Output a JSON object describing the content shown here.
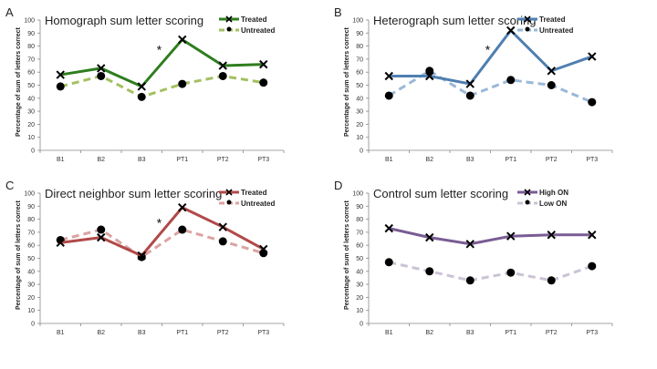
{
  "chart_data": [
    {
      "type": "line",
      "panel_label": "A",
      "title": "Homograph sum letter scoring",
      "xlabel": "",
      "ylabel": "Percentage of sum of letters correct",
      "ylim": [
        0,
        100
      ],
      "yticks": [
        "0",
        "10",
        "20",
        "30",
        "40",
        "50",
        "60",
        "70",
        "80",
        "90",
        "100"
      ],
      "categories": [
        "B1",
        "B2",
        "B3",
        "PT1",
        "PT2",
        "PT3"
      ],
      "legend_position": "top-right",
      "annotation": {
        "text": "*",
        "between": [
          "B3",
          "PT1"
        ],
        "y": 78
      },
      "series": [
        {
          "name": "Treated",
          "color": "#2e7d1e",
          "style": "solid",
          "marker": "x",
          "values": [
            58,
            63,
            49,
            85,
            65,
            66
          ]
        },
        {
          "name": "Untreated",
          "color": "#a4c060",
          "style": "dashed",
          "marker": "circle",
          "values": [
            49,
            57,
            41,
            51,
            57,
            52
          ]
        }
      ]
    },
    {
      "type": "line",
      "panel_label": "B",
      "title": "Heterograph sum letter scoring",
      "xlabel": "",
      "ylabel": "Percentage of sum of letters correct",
      "ylim": [
        0,
        100
      ],
      "yticks": [
        "0",
        "10",
        "20",
        "30",
        "40",
        "50",
        "60",
        "70",
        "80",
        "90",
        "100"
      ],
      "categories": [
        "B1",
        "B2",
        "B3",
        "PT1",
        "PT2",
        "PT3"
      ],
      "legend_position": "top-right",
      "annotation": {
        "text": "*",
        "between": [
          "B3",
          "PT1"
        ],
        "y": 78
      },
      "series": [
        {
          "name": "Treated",
          "color": "#4f7fb0",
          "style": "solid",
          "marker": "x",
          "values": [
            57,
            57,
            51,
            92,
            61,
            72
          ]
        },
        {
          "name": "Untreated",
          "color": "#9ab8d8",
          "style": "dashed",
          "marker": "circle",
          "values": [
            42,
            61,
            42,
            54,
            50,
            37
          ]
        }
      ]
    },
    {
      "type": "line",
      "panel_label": "C",
      "title": "Direct neighbor sum letter scoring",
      "xlabel": "",
      "ylabel": "Percentage of sum of letters correct",
      "ylim": [
        0,
        100
      ],
      "yticks": [
        "0",
        "10",
        "20",
        "30",
        "40",
        "50",
        "60",
        "70",
        "80",
        "90",
        "100"
      ],
      "categories": [
        "B1",
        "B2",
        "B3",
        "PT1",
        "PT2",
        "PT3"
      ],
      "legend_position": "top-right",
      "annotation": {
        "text": "*",
        "between": [
          "B3",
          "PT1"
        ],
        "y": 78
      },
      "series": [
        {
          "name": "Treated",
          "color": "#b04a48",
          "style": "solid",
          "marker": "x",
          "values": [
            62,
            66,
            52,
            89,
            74,
            57
          ]
        },
        {
          "name": "Untreated",
          "color": "#dba3a2",
          "style": "dashed",
          "marker": "circle",
          "values": [
            64,
            72,
            51,
            72,
            63,
            54
          ]
        }
      ]
    },
    {
      "type": "line",
      "panel_label": "D",
      "title": "Control sum letter scoring",
      "xlabel": "",
      "ylabel": "Percentage of sum of letters correct",
      "ylim": [
        0,
        100
      ],
      "yticks": [
        "0",
        "10",
        "20",
        "30",
        "40",
        "50",
        "60",
        "70",
        "80",
        "90",
        "100"
      ],
      "categories": [
        "B1",
        "B2",
        "B3",
        "PT1",
        "PT2",
        "PT3"
      ],
      "legend_position": "top-right",
      "annotation": null,
      "series": [
        {
          "name": "High ON",
          "color": "#7a5c94",
          "style": "solid",
          "marker": "x",
          "values": [
            73,
            66,
            61,
            67,
            68,
            68
          ]
        },
        {
          "name": "Low ON",
          "color": "#cbc3d6",
          "style": "dashed",
          "marker": "circle",
          "values": [
            47,
            40,
            33,
            39,
            33,
            44
          ]
        }
      ]
    }
  ]
}
